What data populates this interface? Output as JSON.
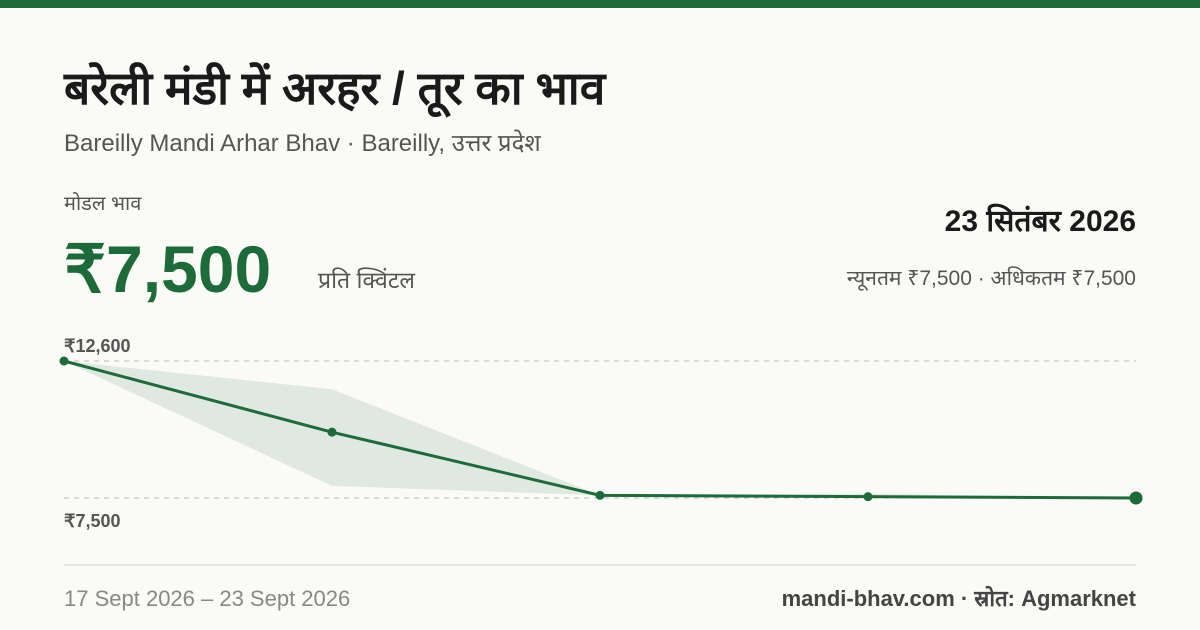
{
  "header": {
    "title": "बरेली मंडी में अरहर / तूर का भाव",
    "subtitle": "Bareilly Mandi Arhar Bhav · Bareilly, उत्तर प्रदेश"
  },
  "price": {
    "label": "मोडल भाव",
    "value": "₹7,500",
    "unit": "प्रति क्विंटल",
    "date": "23 सितंबर 2026",
    "range": "न्यूनतम ₹7,500 · अधिकतम ₹7,500"
  },
  "chart_data": {
    "type": "line",
    "categories": [
      null,
      null,
      null,
      null,
      null
    ],
    "series": [
      {
        "name": "modal",
        "color": "#1e6b3a",
        "values": [
          12600,
          9950,
          7600,
          7550,
          7500
        ]
      },
      {
        "name": "max",
        "color": "#dfe9e1",
        "values": [
          12600,
          11550,
          7600,
          7650,
          7500
        ]
      },
      {
        "name": "min",
        "color": "#dfe9e1",
        "values": [
          12600,
          7950,
          7600,
          7530,
          7500
        ]
      }
    ],
    "ylim": [
      7500,
      12600
    ],
    "yticks": [
      {
        "value": 7500,
        "label": "₹7,500"
      },
      {
        "value": 12600,
        "label": "₹12,600"
      }
    ],
    "grid": true
  },
  "footer": {
    "dates": "17 Sept 2026 – 23 Sept 2026",
    "source": "mandi-bhav.com · स्रोत: Agmarknet"
  }
}
